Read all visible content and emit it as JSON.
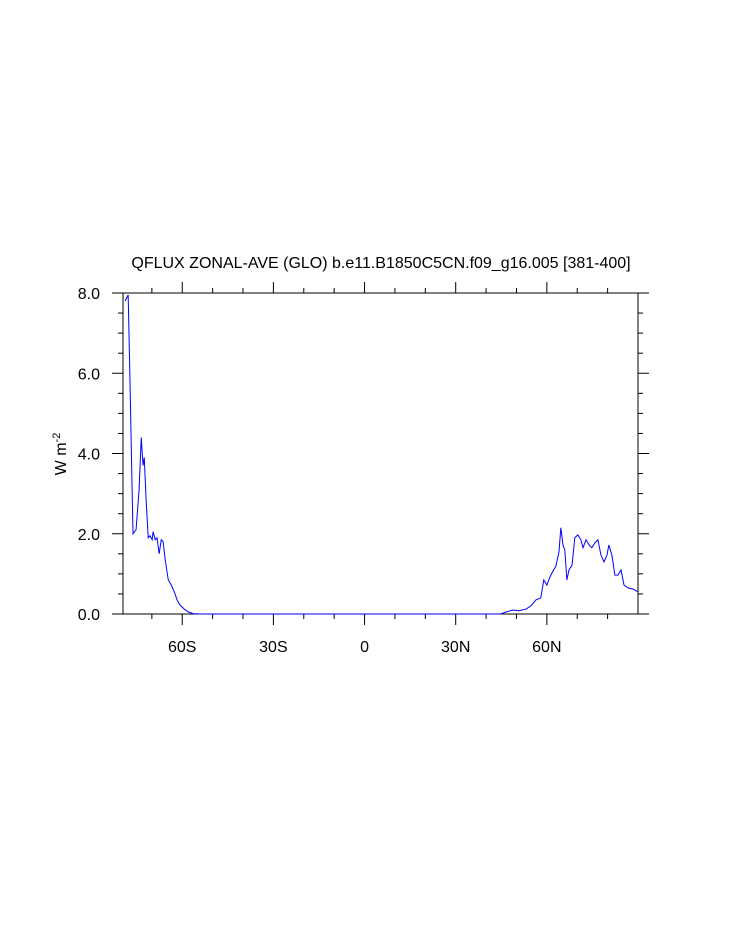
{
  "chart_data": {
    "type": "line",
    "title": "QFLUX ZONAL-AVE (GLO) b.e11.B1850C5CN.f09_g16.005 [381-400]",
    "ylabel": {
      "text": "W m",
      "superscript": "-2"
    },
    "color": "#0000ff",
    "xlim": [
      -79.5,
      90
    ],
    "ylim": [
      0,
      8
    ],
    "xticks": [
      {
        "value": -60,
        "label": "60S"
      },
      {
        "value": -30,
        "label": "30S"
      },
      0,
      {
        "value": 30,
        "label": "30N"
      },
      {
        "value": 60,
        "label": "60N"
      }
    ],
    "yticks": [
      {
        "value": 0,
        "label": "0.0"
      },
      {
        "value": 2,
        "label": "2.0"
      },
      {
        "value": 4,
        "label": "4.0"
      },
      {
        "value": 6,
        "label": "6.0"
      },
      {
        "value": 8,
        "label": "8.0"
      }
    ],
    "xminorticks": [
      -70,
      -50,
      -40,
      -20,
      -10,
      10,
      20,
      40,
      50,
      70,
      80
    ],
    "yminorticks": [
      0.5,
      1,
      1.5,
      2.5,
      3,
      3.5,
      4.5,
      5,
      5.5,
      6.5,
      7,
      7.5
    ],
    "x": [
      -78.8,
      -77.8,
      -77.2,
      -76.5,
      -76.2,
      -75.2,
      -74.2,
      -73.5,
      -72.9,
      -72.5,
      -71.9,
      -71.2,
      -70.6,
      -69.9,
      -69.6,
      -68.9,
      -68.3,
      -67.6,
      -66.9,
      -66.3,
      -65.6,
      -64.6,
      -63.6,
      -62.6,
      -61.7,
      -60.7,
      -59.3,
      -58.0,
      -56.4,
      -54.1,
      -50,
      0,
      40,
      44.8,
      46.5,
      48.8,
      50.8,
      53.1,
      54.7,
      56.4,
      58.0,
      59.0,
      60.0,
      61.3,
      63.0,
      64.0,
      64.6,
      65.3,
      65.9,
      66.6,
      67.3,
      68.3,
      69.2,
      70.2,
      71.2,
      71.9,
      72.9,
      73.9,
      74.8,
      75.8,
      76.8,
      77.8,
      78.8,
      79.8,
      80.4,
      81.4,
      82.4,
      83.4,
      84.4,
      85.4,
      86.7,
      88.4,
      90.0
    ],
    "values": [
      7.8,
      7.95,
      5.8,
      3.1,
      2.0,
      2.1,
      3.1,
      4.4,
      3.7,
      3.9,
      2.85,
      1.9,
      1.95,
      1.85,
      2.05,
      1.85,
      1.9,
      1.5,
      1.85,
      1.8,
      1.35,
      0.85,
      0.72,
      0.55,
      0.35,
      0.22,
      0.12,
      0.05,
      0.01,
      0,
      0,
      0,
      0,
      0,
      0.05,
      0.1,
      0.08,
      0.12,
      0.2,
      0.35,
      0.4,
      0.85,
      0.72,
      0.97,
      1.2,
      1.55,
      2.15,
      1.72,
      1.6,
      0.85,
      1.1,
      1.22,
      1.9,
      1.97,
      1.85,
      1.65,
      1.85,
      1.72,
      1.65,
      1.77,
      1.85,
      1.47,
      1.3,
      1.47,
      1.72,
      1.47,
      0.97,
      0.97,
      1.1,
      0.72,
      0.65,
      0.62,
      0.55
    ]
  }
}
